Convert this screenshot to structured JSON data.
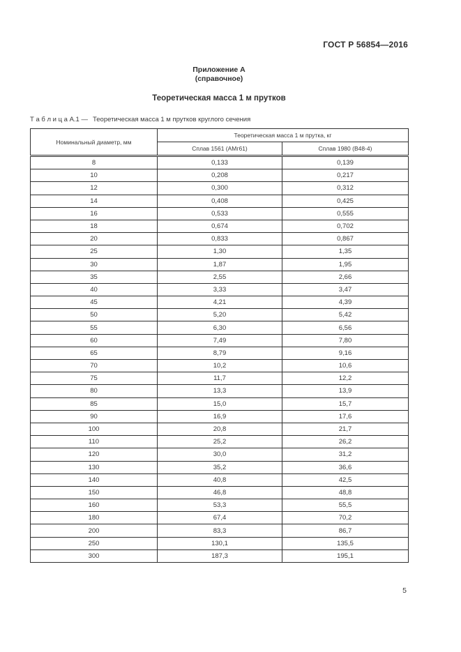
{
  "page": {
    "doc_code": "ГОСТ Р 56854—2016",
    "appendix_title": "Приложение А",
    "appendix_subtitle": "(справочное)",
    "section_title": "Теоретическая масса 1 м прутков",
    "table_caption_label": "Т а б л и ц а А.1 —",
    "table_caption_text": "Теоретическая масса 1 м прутков круглого сечения",
    "page_number": "5"
  },
  "table": {
    "col1_header": "Номинальный диаметр, мм",
    "group_header": "Теоретическая масса 1 м прутка, кг",
    "sub_headers": [
      "Сплав 1561 (АМг61)",
      "Сплав 1980 (В48-4)"
    ],
    "rows": [
      [
        "8",
        "0,133",
        "0,139"
      ],
      [
        "10",
        "0,208",
        "0,217"
      ],
      [
        "12",
        "0,300",
        "0,312"
      ],
      [
        "14",
        "0,408",
        "0,425"
      ],
      [
        "16",
        "0,533",
        "0,555"
      ],
      [
        "18",
        "0,674",
        "0,702"
      ],
      [
        "20",
        "0,833",
        "0,867"
      ],
      [
        "25",
        "1,30",
        "1,35"
      ],
      [
        "30",
        "1,87",
        "1,95"
      ],
      [
        "35",
        "2,55",
        "2,66"
      ],
      [
        "40",
        "3,33",
        "3,47"
      ],
      [
        "45",
        "4,21",
        "4,39"
      ],
      [
        "50",
        "5,20",
        "5,42"
      ],
      [
        "55",
        "6,30",
        "6,56"
      ],
      [
        "60",
        "7,49",
        "7,80"
      ],
      [
        "65",
        "8,79",
        "9,16"
      ],
      [
        "70",
        "10,2",
        "10,6"
      ],
      [
        "75",
        "11,7",
        "12,2"
      ],
      [
        "80",
        "13,3",
        "13,9"
      ],
      [
        "85",
        "15,0",
        "15,7"
      ],
      [
        "90",
        "16,9",
        "17,6"
      ],
      [
        "100",
        "20,8",
        "21,7"
      ],
      [
        "110",
        "25,2",
        "26,2"
      ],
      [
        "120",
        "30,0",
        "31,2"
      ],
      [
        "130",
        "35,2",
        "36,6"
      ],
      [
        "140",
        "40,8",
        "42,5"
      ],
      [
        "150",
        "46,8",
        "48,8"
      ],
      [
        "160",
        "53,3",
        "55,5"
      ],
      [
        "180",
        "67,4",
        "70,2"
      ],
      [
        "200",
        "83,3",
        "86,7"
      ],
      [
        "250",
        "130,1",
        "135,5"
      ],
      [
        "300",
        "187,3",
        "195,1"
      ]
    ]
  }
}
